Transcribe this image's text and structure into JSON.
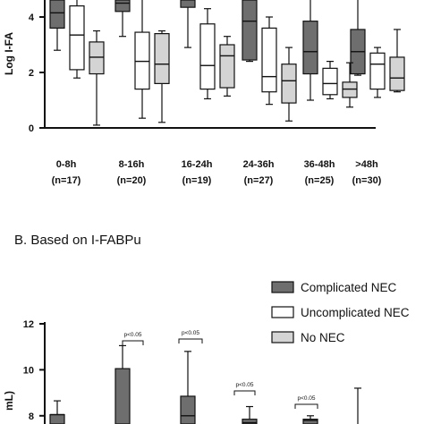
{
  "chart_data": [
    {
      "type": "box",
      "ylabel": "Log I-FA",
      "yticks": [
        0,
        2,
        4
      ],
      "ylim": [
        0,
        5.3
      ],
      "categories": [
        {
          "label": "0-8h",
          "n": "(n=17)"
        },
        {
          "label": "8-16h",
          "n": "(n=20)"
        },
        {
          "label": "16-24h",
          "n": "(n=19)"
        },
        {
          "label": "24-36h",
          "n": "(n=27)"
        },
        {
          "label": "36-48h",
          "n": "(n=25)"
        },
        {
          "label": ">48h",
          "n": "(n=30)"
        }
      ],
      "series": [
        {
          "name": "Complicated NEC",
          "color": "#6e6e6e",
          "boxes": [
            {
              "min": 2.8,
              "q1": 3.6,
              "median": 4.15,
              "q3": 5.5,
              "max": 5.5
            },
            {
              "min": 3.3,
              "q1": 4.2,
              "median": 4.5,
              "q3": 5.5,
              "max": 5.5
            },
            {
              "min": 2.9,
              "q1": 4.35,
              "median": 4.7,
              "q3": 5.5,
              "max": 5.5
            },
            {
              "min": 2.4,
              "q1": 2.45,
              "median": 3.85,
              "q3": 4.8,
              "max": 5.5
            },
            {
              "min": 1.0,
              "q1": 1.95,
              "median": 2.75,
              "q3": 3.85,
              "max": 5.0
            },
            {
              "min": 1.9,
              "q1": 1.95,
              "median": 2.75,
              "q3": 3.55,
              "max": 4.9
            }
          ]
        },
        {
          "name": "Uncomplicated NEC",
          "color": "#ffffff",
          "boxes": [
            {
              "min": 1.8,
              "q1": 2.1,
              "median": 3.35,
              "q3": 4.4,
              "max": 5.5
            },
            {
              "min": 0.35,
              "q1": 1.4,
              "median": 2.4,
              "q3": 3.45,
              "max": 5.5
            },
            {
              "min": 1.05,
              "q1": 1.4,
              "median": 2.25,
              "q3": 3.75,
              "max": 4.3
            },
            {
              "min": 0.85,
              "q1": 1.3,
              "median": 1.85,
              "q3": 3.6,
              "max": 4.0
            },
            {
              "min": 1.05,
              "q1": 1.2,
              "median": 1.6,
              "q3": 2.15,
              "max": 2.4
            },
            {
              "min": 1.1,
              "q1": 1.4,
              "median": 2.3,
              "q3": 2.7,
              "max": 2.9
            }
          ]
        },
        {
          "name": "No NEC",
          "color": "#d4d4d4",
          "boxes": [
            {
              "min": 0.1,
              "q1": 1.95,
              "median": 2.55,
              "q3": 3.1,
              "max": 3.5
            },
            {
              "min": 0.2,
              "q1": 1.6,
              "median": 2.3,
              "q3": 3.4,
              "max": 3.5
            },
            {
              "min": 1.15,
              "q1": 1.45,
              "median": 2.6,
              "q3": 3.0,
              "max": 3.3
            },
            {
              "min": 0.25,
              "q1": 0.9,
              "median": 1.7,
              "q3": 2.3,
              "max": 2.9
            },
            {
              "min": 0.75,
              "q1": 1.1,
              "median": 1.4,
              "q3": 1.65,
              "max": 2.35
            },
            {
              "min": 1.3,
              "q1": 1.35,
              "median": 1.8,
              "q3": 2.55,
              "max": 3.55
            }
          ]
        }
      ]
    },
    {
      "type": "box",
      "title": "B. Based on I-FABPu",
      "ylabel": "mL)",
      "yticks": [
        8,
        10,
        12
      ],
      "ylim": [
        7.6,
        12.5
      ],
      "legend": {
        "placement": "top-right",
        "entries": [
          "Complicated NEC",
          "Uncomplicated NEC",
          "No NEC"
        ]
      },
      "annotations": [
        "p<0.05",
        "p<0.05",
        "p<0.05",
        "p<0.05"
      ],
      "series": [
        {
          "name": "Complicated NEC",
          "color": "#6e6e6e",
          "boxes": [
            {
              "min": 7.5,
              "q1": 7.5,
              "median": 8.05,
              "q3": 8.05,
              "max": 8.65
            },
            {
              "min": 7.5,
              "q1": 7.5,
              "median": 7.5,
              "q3": 10.05,
              "max": 11.05
            },
            {
              "min": 7.5,
              "q1": 7.5,
              "median": 8.0,
              "q3": 8.85,
              "max": 10.8
            },
            {
              "min": 7.5,
              "q1": 7.5,
              "median": 7.7,
              "q3": 7.85,
              "max": 8.4
            },
            {
              "min": 7.5,
              "q1": 7.5,
              "median": 7.8,
              "q3": 7.85,
              "max": 8.0
            },
            {
              "min": 7.5,
              "q1": 7.5,
              "median": 7.5,
              "q3": 7.5,
              "max": 9.2
            }
          ]
        }
      ]
    }
  ]
}
